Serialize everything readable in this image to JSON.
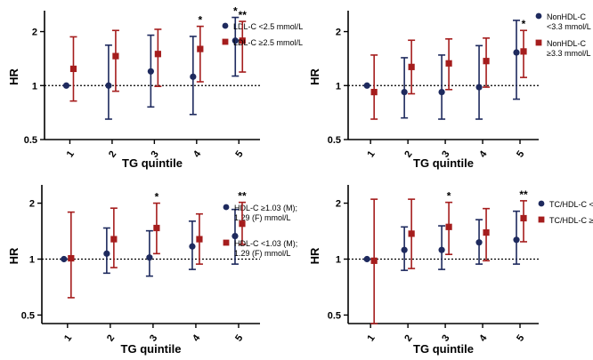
{
  "figure": {
    "colors": {
      "series_a": "#1e2a5e",
      "series_b": "#a51d1d",
      "axis": "#000000",
      "reference_line": "#000000"
    }
  },
  "chart_data": [
    {
      "type": "scatter",
      "panel": "top-left",
      "xlabel": "TG quintile",
      "ylabel": "HR",
      "categories": [
        "1",
        "2",
        "3",
        "4",
        "5"
      ],
      "y_scale": "log",
      "ylim": [
        0.5,
        2.5
      ],
      "y_ticks": [
        "0.5",
        "1",
        "2"
      ],
      "reference_line": 1,
      "legend_position": "right",
      "series": [
        {
          "name": "LDL-C <2.5 mmol/L",
          "marker": "circle",
          "color": "#1e2a5e",
          "values": [
            1.0,
            1.0,
            1.2,
            1.12,
            1.78
          ],
          "lower": [
            1.0,
            0.65,
            0.76,
            0.69,
            1.13
          ],
          "upper": [
            1.0,
            1.68,
            1.91,
            1.88,
            2.4
          ],
          "annotations": [
            "",
            "",
            "",
            "",
            "*"
          ]
        },
        {
          "name": "LDL-C ≥2.5 mmol/L",
          "marker": "square",
          "color": "#a51d1d",
          "values": [
            1.24,
            1.46,
            1.5,
            1.6,
            1.78
          ],
          "lower": [
            0.82,
            0.93,
            0.99,
            1.05,
            1.19
          ],
          "upper": [
            1.87,
            2.03,
            2.06,
            2.14,
            2.28
          ],
          "annotations": [
            "",
            "",
            "",
            "*",
            "**"
          ]
        }
      ]
    },
    {
      "type": "scatter",
      "panel": "top-right",
      "xlabel": "TG quintile",
      "ylabel": "HR",
      "categories": [
        "1",
        "2",
        "3",
        "4",
        "5"
      ],
      "y_scale": "log",
      "ylim": [
        0.5,
        2.5
      ],
      "y_ticks": [
        "0.5",
        "1",
        "2"
      ],
      "reference_line": 1,
      "legend_position": "right",
      "series": [
        {
          "name": "NonHDL-C <3.3 mmol/L",
          "legend_lines": [
            "NonHDL-C",
            "<3.3 mmol/L"
          ],
          "marker": "circle",
          "color": "#1e2a5e",
          "values": [
            1.0,
            0.92,
            0.92,
            0.98,
            1.53
          ],
          "lower": [
            1.0,
            0.66,
            0.65,
            0.65,
            0.84
          ],
          "upper": [
            1.0,
            1.43,
            1.48,
            1.67,
            2.31
          ],
          "annotations": [
            "",
            "",
            "",
            "",
            ""
          ]
        },
        {
          "name": "NonHDL-C ≥3.3 mmol/L",
          "legend_lines": [
            "NonHDL-C",
            "≥3.3 mmol/L"
          ],
          "marker": "square",
          "color": "#a51d1d",
          "values": [
            0.92,
            1.27,
            1.33,
            1.37,
            1.55
          ],
          "lower": [
            0.65,
            0.9,
            0.95,
            0.98,
            1.11
          ],
          "upper": [
            1.48,
            1.79,
            1.82,
            1.84,
            2.03
          ],
          "annotations": [
            "",
            "",
            "",
            "",
            "*"
          ]
        }
      ]
    },
    {
      "type": "scatter",
      "panel": "bottom-left",
      "xlabel": "TG quintile",
      "ylabel": "HR",
      "categories": [
        "1",
        "2",
        "3",
        "4",
        "5"
      ],
      "y_scale": "log",
      "ylim": [
        0.45,
        2.4
      ],
      "y_ticks": [
        "0.5",
        "1",
        "2"
      ],
      "reference_line": 1,
      "legend_position": "right",
      "series": [
        {
          "name": "HDL-C ≥1.03 (M); 1.29 (F) mmol/L",
          "legend_lines": [
            "HDL-C ≥1.03 (M);",
            "1.29 (F) mmol/L"
          ],
          "marker": "circle",
          "color": "#1e2a5e",
          "values": [
            1.0,
            1.07,
            1.02,
            1.17,
            1.33
          ],
          "lower": [
            1.0,
            0.84,
            0.81,
            0.88,
            0.94
          ],
          "upper": [
            1.0,
            1.47,
            1.42,
            1.6,
            1.85
          ],
          "annotations": [
            "",
            "",
            "",
            "",
            ""
          ]
        },
        {
          "name": "HDL-C <1.03 (M); 1.29 (F) mmol/L",
          "legend_lines": [
            "HDL-C <1.03 (M);",
            "1.29 (F) mmol/L"
          ],
          "marker": "square",
          "color": "#a51d1d",
          "values": [
            1.01,
            1.28,
            1.47,
            1.28,
            1.55
          ],
          "lower": [
            0.62,
            0.9,
            1.07,
            0.94,
            1.2
          ],
          "upper": [
            1.79,
            1.88,
            2.0,
            1.75,
            2.02
          ],
          "annotations": [
            "",
            "",
            "*",
            "",
            "**"
          ]
        }
      ]
    },
    {
      "type": "scatter",
      "panel": "bottom-right",
      "xlabel": "TG quintile",
      "ylabel": "HR",
      "categories": [
        "1",
        "2",
        "3",
        "4",
        "5"
      ],
      "y_scale": "log",
      "ylim": [
        0.45,
        2.4
      ],
      "y_ticks": [
        "0.5",
        "1",
        "2"
      ],
      "reference_line": 1,
      "legend_position": "right",
      "series": [
        {
          "name": "TC/HDL-C <",
          "legend_lines": [
            "TC/HDL-C <"
          ],
          "marker": "circle",
          "color": "#1e2a5e",
          "values": [
            1.0,
            1.12,
            1.12,
            1.23,
            1.27
          ],
          "lower": [
            1.0,
            0.87,
            0.88,
            0.94,
            0.94
          ],
          "upper": [
            1.0,
            1.49,
            1.51,
            1.63,
            1.81
          ],
          "annotations": [
            "",
            "",
            "",
            "",
            ""
          ]
        },
        {
          "name": "TC/HDL-C ≥",
          "legend_lines": [
            "TC/HDL-C ≥"
          ],
          "marker": "square",
          "color": "#a51d1d",
          "values": [
            0.98,
            1.37,
            1.49,
            1.39,
            1.66
          ],
          "lower": [
            0.45,
            0.89,
            1.06,
            0.98,
            1.24
          ],
          "upper": [
            2.1,
            2.1,
            2.02,
            1.87,
            2.06
          ],
          "annotations": [
            "",
            "",
            "*",
            "",
            "**"
          ]
        }
      ]
    }
  ]
}
